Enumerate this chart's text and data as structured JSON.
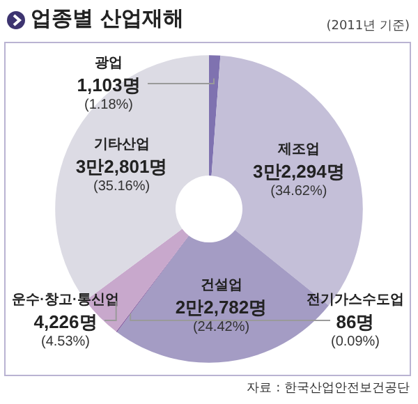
{
  "chart_data": {
    "type": "donut",
    "title": "업종별 산업재해",
    "subtitle": "(2011년 기준)",
    "categories": [
      "광업",
      "제조업",
      "건설업",
      "전기가스수도업",
      "운수·창고·통신업",
      "기타산업"
    ],
    "values": [
      1.18,
      34.62,
      24.42,
      0.09,
      4.53,
      35.16
    ],
    "value_labels": [
      "1,103명\n(1.18%)",
      "3만2,294명\n(34.62%)",
      "2만2,782명\n(24.42%)",
      "86명\n(0.09%)",
      "4,226명\n(4.53%)",
      "3만2,801명\n(35.16%)"
    ],
    "colors": [
      "#7f72b0",
      "#c4bfd8",
      "#a49cc4",
      "#7a4c96",
      "#c8a8cc",
      "#dcdbe4"
    ],
    "legend": false,
    "annotations": [
      "자료 : 한국산업안전보건공단"
    ]
  }
}
